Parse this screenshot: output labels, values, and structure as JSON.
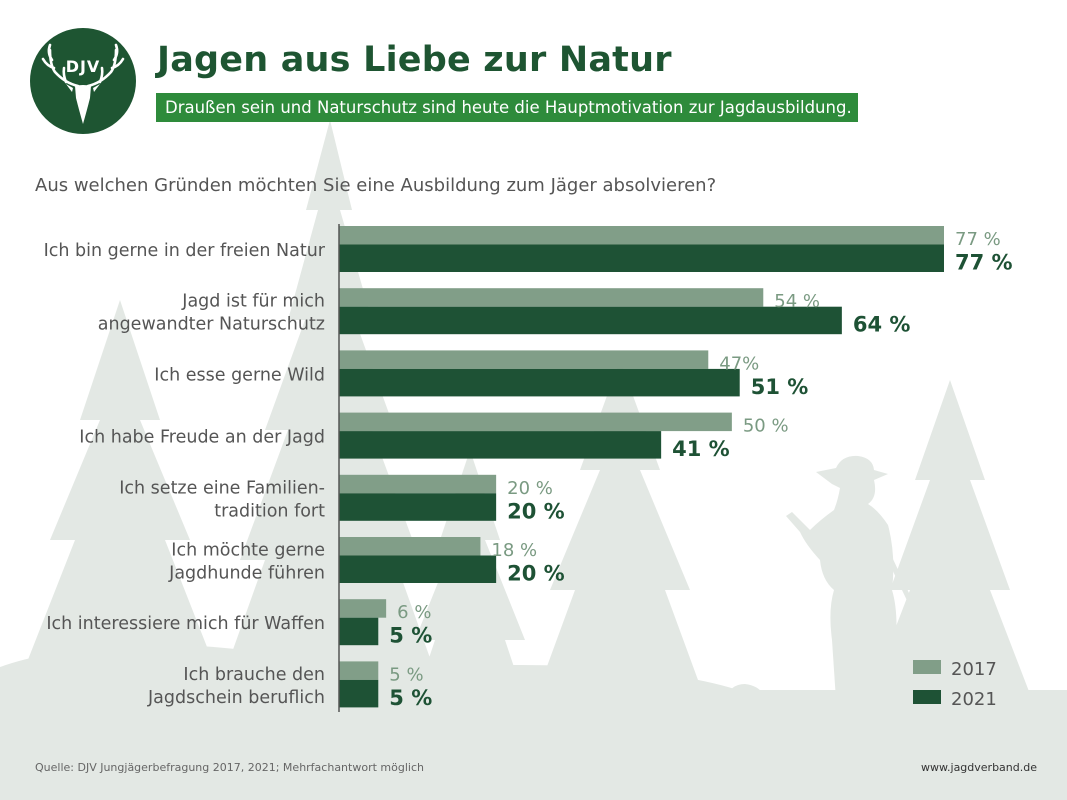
{
  "logo": {
    "text": "DJV"
  },
  "header": {
    "title": "Jagen aus Liebe zur Natur",
    "subtitle": "Draußen sein und Naturschutz sind heute die Hauptmotivation zur Jagdausbildung."
  },
  "question": "Aus welchen Gründen möchten Sie eine Ausbildung zum Jäger absolvieren?",
  "colors": {
    "brand_dark": "#1e5532",
    "brand_green": "#2e8b3b",
    "bar_2017": "#819e88",
    "bar_2021": "#1e5235",
    "label_2017": "#7a9a82",
    "label_2021": "#1e5235",
    "silhouette": "#e3e8e4"
  },
  "chart_data": {
    "type": "bar",
    "orientation": "horizontal",
    "title": "Aus welchen Gründen möchten Sie eine Ausbildung zum Jäger absolvieren?",
    "xlabel": "",
    "ylabel": "",
    "xlim": [
      0,
      77
    ],
    "grid": false,
    "legend_position": "bottom-right",
    "categories": [
      [
        "Ich bin gerne in der freien Natur"
      ],
      [
        "Jagd ist für mich",
        "angewandter Naturschutz"
      ],
      [
        "Ich esse gerne Wild"
      ],
      [
        "Ich habe Freude an der Jagd"
      ],
      [
        "Ich setze eine Familien-",
        "tradition fort"
      ],
      [
        "Ich möchte gerne",
        "Jagdhunde führen"
      ],
      [
        "Ich interessiere mich für Waffen"
      ],
      [
        "Ich brauche den",
        "Jagdschein beruflich"
      ]
    ],
    "series": [
      {
        "name": "2017",
        "values": [
          77,
          54,
          47,
          50,
          20,
          18,
          6,
          5
        ],
        "labels": [
          "77 %",
          "54 %",
          "47%",
          "50 %",
          "20 %",
          "18 %",
          "6 %",
          "5 %"
        ]
      },
      {
        "name": "2021",
        "values": [
          77,
          64,
          51,
          41,
          20,
          20,
          5,
          5
        ],
        "labels": [
          "77 %",
          "64 %",
          "51 %",
          "41 %",
          "20 %",
          "20 %",
          "5 %",
          "5 %"
        ]
      }
    ]
  },
  "footer": {
    "source": "Quelle: DJV Jungjägerbefragung 2017, 2021; Mehrfachantwort möglich",
    "website": "www.jagdverband.de"
  }
}
